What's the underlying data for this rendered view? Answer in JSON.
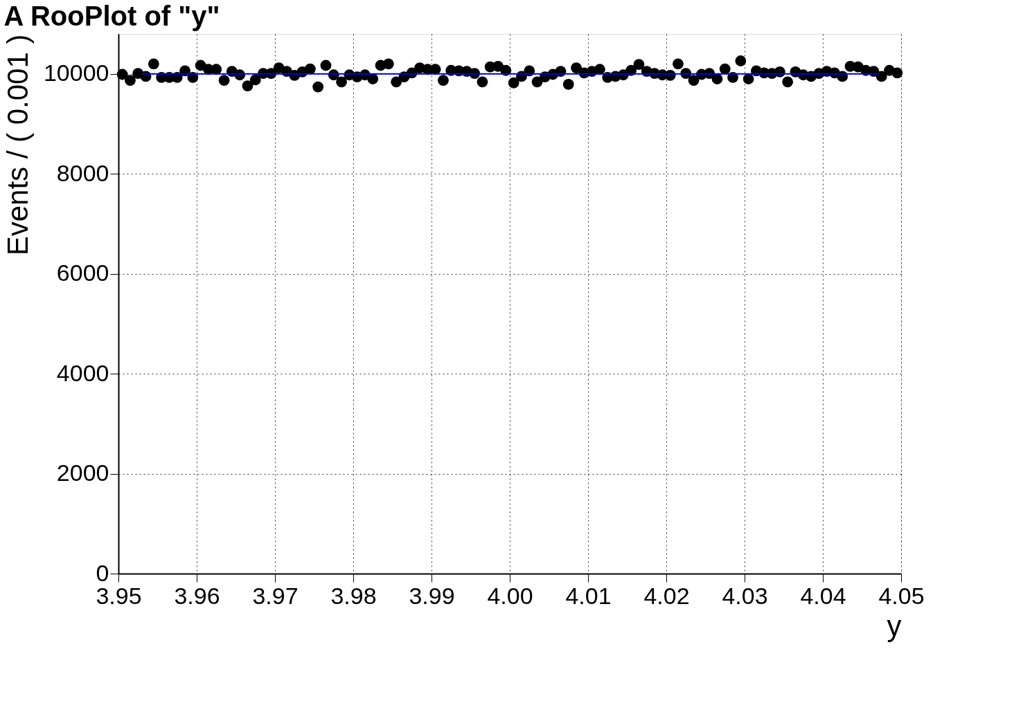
{
  "chart_data": {
    "type": "scatter",
    "title": "A RooPlot of \"y\"",
    "xlabel": "y",
    "ylabel": "Events / ( 0.001 )",
    "x": [
      3.9505,
      3.9515,
      3.9525,
      3.9535,
      3.9545,
      3.9555,
      3.9565,
      3.9575,
      3.9585,
      3.9595,
      3.9605,
      3.9615,
      3.9625,
      3.9635,
      3.9645,
      3.9655,
      3.9665,
      3.9675,
      3.9685,
      3.9695,
      3.9705,
      3.9715,
      3.9725,
      3.9735,
      3.9745,
      3.9755,
      3.9765,
      3.9775,
      3.9785,
      3.9795,
      3.9805,
      3.9815,
      3.9825,
      3.9835,
      3.9845,
      3.9855,
      3.9865,
      3.9875,
      3.9885,
      3.9895,
      3.9905,
      3.9915,
      3.9925,
      3.9935,
      3.9945,
      3.9955,
      3.9965,
      3.9975,
      3.9985,
      3.9995,
      4.0005,
      4.0015,
      4.0025,
      4.0035,
      4.0045,
      4.0055,
      4.0065,
      4.0075,
      4.0085,
      4.0095,
      4.0105,
      4.0115,
      4.0125,
      4.0135,
      4.0145,
      4.0155,
      4.0165,
      4.0175,
      4.0185,
      4.0195,
      4.0205,
      4.0215,
      4.0225,
      4.0235,
      4.0245,
      4.0255,
      4.0265,
      4.0275,
      4.0285,
      4.0295,
      4.0305,
      4.0315,
      4.0325,
      4.0335,
      4.0345,
      4.0355,
      4.0365,
      4.0375,
      4.0385,
      4.0395,
      4.0405,
      4.0415,
      4.0425,
      4.0435,
      4.0445,
      4.0455,
      4.0465,
      4.0475,
      4.0485,
      4.0495
    ],
    "series": [
      {
        "color": "#000000",
        "marker": "circle",
        "values": [
          9990,
          9870,
          10010,
          9950,
          10200,
          9930,
          9930,
          9930,
          10060,
          9930,
          10170,
          10090,
          10090,
          9870,
          10050,
          9980,
          9760,
          9880,
          10010,
          10010,
          10120,
          10050,
          9970,
          10040,
          10100,
          9740,
          10170,
          9980,
          9840,
          9980,
          9940,
          9980,
          9900,
          10170,
          10200,
          9840,
          9940,
          10020,
          10120,
          10090,
          10090,
          9870,
          10070,
          10060,
          10050,
          10010,
          9840,
          10140,
          10150,
          10070,
          9820,
          9950,
          10060,
          9840,
          9940,
          9990,
          10050,
          9790,
          10120,
          10020,
          10050,
          10090,
          9930,
          9950,
          9980,
          10070,
          10190,
          10050,
          10010,
          9980,
          9970,
          10200,
          10010,
          9870,
          9990,
          10010,
          9900,
          10100,
          9930,
          10260,
          9900,
          10060,
          10020,
          10010,
          10040,
          9840,
          10040,
          9980,
          9950,
          10010,
          10050,
          10020,
          9950,
          10150,
          10140,
          10070,
          10050,
          9950,
          10070,
          10020
        ]
      },
      {
        "type": "line",
        "line_style": "solid",
        "color": "#0000ff",
        "x": [
          3.953,
          4.047
        ],
        "values": [
          10000,
          10000
        ]
      }
    ],
    "xlim": [
      3.95,
      4.05
    ],
    "ylim": [
      0,
      10800
    ],
    "xticks": [
      3.95,
      3.96,
      3.97,
      3.98,
      3.99,
      {
        "value": 4,
        "label": "4.00"
      },
      4.01,
      4.02,
      4.03,
      4.04,
      4.05
    ],
    "yticks": [
      0,
      2000,
      4000,
      6000,
      8000,
      10000
    ],
    "grid": true
  }
}
